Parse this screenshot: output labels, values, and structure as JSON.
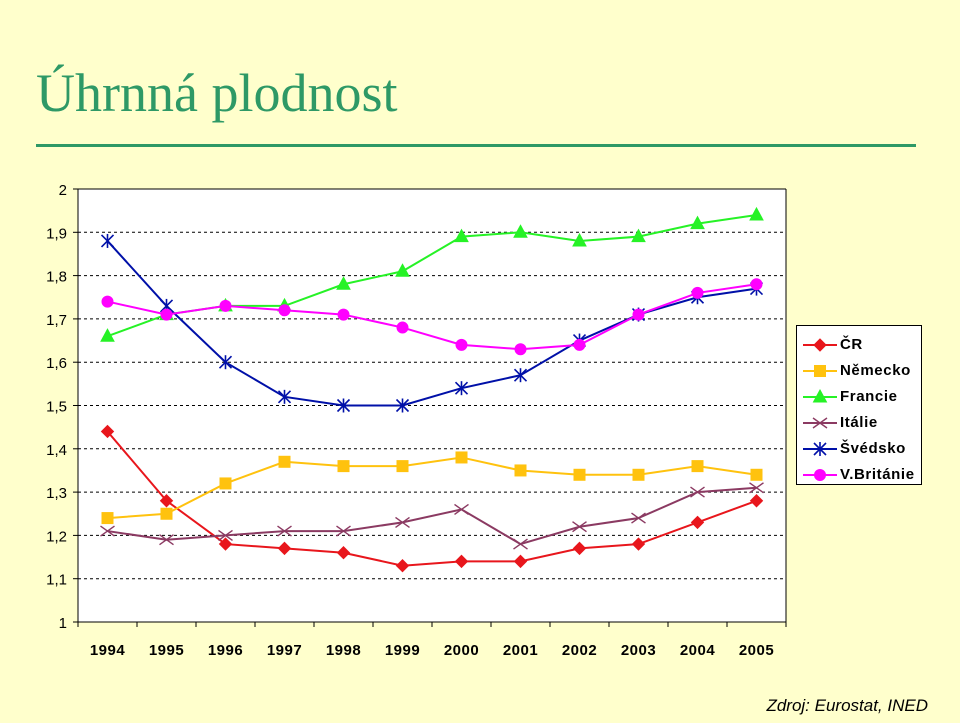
{
  "title": "Úhrnná plodnost",
  "source": "Zdroj: Eurostat, INED",
  "chart_data": {
    "type": "line",
    "categories": [
      "1994",
      "1995",
      "1996",
      "1997",
      "1998",
      "1999",
      "2000",
      "2001",
      "2002",
      "2003",
      "2004",
      "2005"
    ],
    "ylim": [
      1,
      2
    ],
    "yticks": [
      "1",
      "1,1",
      "1,2",
      "1,3",
      "1,4",
      "1,5",
      "1,6",
      "1,7",
      "1,8",
      "1,9",
      "2"
    ],
    "xlabel": "",
    "ylabel": "",
    "grid": "horizontal dashed",
    "legend_position": "right",
    "series": [
      {
        "name": "ČR",
        "color": "#e8161c",
        "marker": "diamond",
        "values": [
          1.44,
          1.28,
          1.18,
          1.17,
          1.16,
          1.13,
          1.14,
          1.14,
          1.17,
          1.18,
          1.23,
          1.28
        ]
      },
      {
        "name": "Německo",
        "color": "#ffc20e",
        "marker": "square",
        "values": [
          1.24,
          1.25,
          1.32,
          1.37,
          1.36,
          1.36,
          1.38,
          1.35,
          1.34,
          1.34,
          1.36,
          1.34
        ]
      },
      {
        "name": "Francie",
        "color": "#26f226",
        "marker": "triangle",
        "values": [
          1.66,
          1.71,
          1.73,
          1.73,
          1.78,
          1.81,
          1.89,
          1.9,
          1.88,
          1.89,
          1.92,
          1.94
        ]
      },
      {
        "name": "Itálie",
        "color": "#8b3a62",
        "marker": "x",
        "values": [
          1.21,
          1.19,
          1.2,
          1.21,
          1.21,
          1.23,
          1.26,
          1.18,
          1.22,
          1.24,
          1.3,
          1.31
        ]
      },
      {
        "name": "Švédsko",
        "color": "#0010a8",
        "marker": "asterisk",
        "values": [
          1.88,
          1.73,
          1.6,
          1.52,
          1.5,
          1.5,
          1.54,
          1.57,
          1.65,
          1.71,
          1.75,
          1.77
        ]
      },
      {
        "name": "V.Británie",
        "color": "#ff00ff",
        "marker": "circle",
        "values": [
          1.74,
          1.71,
          1.73,
          1.72,
          1.71,
          1.68,
          1.64,
          1.63,
          1.64,
          1.71,
          1.76,
          1.78
        ]
      }
    ]
  }
}
